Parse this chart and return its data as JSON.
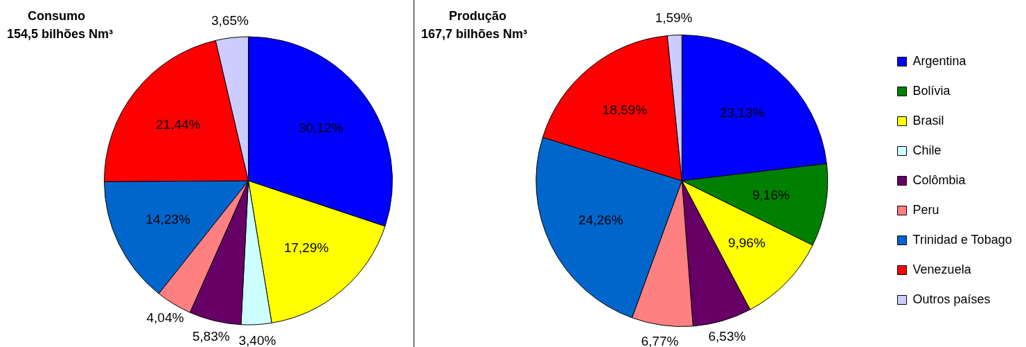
{
  "chart_data": [
    {
      "type": "pie",
      "title": "Consumo",
      "subtitle": "154,5 bilhões Nm³",
      "legend": false,
      "categories": [
        null,
        null,
        null,
        null,
        null,
        null,
        null,
        null
      ],
      "values": [
        30.12,
        17.29,
        3.4,
        5.83,
        4.04,
        14.23,
        21.44,
        3.65
      ],
      "colors": [
        "#0000ff",
        "#ffff00",
        "#ccffff",
        "#660066",
        "#ff8080",
        "#0066cc",
        "#ff0000",
        "#ccccff"
      ],
      "value_labels": [
        "30,12%",
        "17,29%",
        "3,40%",
        "5,83%",
        "4,04%",
        "14,23%",
        "21,44%",
        "3,65%"
      ]
    },
    {
      "type": "pie",
      "title": "Produção",
      "subtitle": "167,7 bilhões Nm³",
      "legend": "right",
      "categories": [
        "Argentina",
        "Bolívia",
        "Brasil",
        "Chile",
        "Colômbia",
        "Peru",
        "Trinidad e Tobago",
        "Venezuela",
        "Outros países"
      ],
      "values": [
        23.13,
        9.16,
        9.96,
        0,
        6.53,
        6.77,
        24.26,
        18.59,
        1.59
      ],
      "colors": [
        "#0000ff",
        "#008000",
        "#ffff00",
        "#ccffff",
        "#660066",
        "#ff8080",
        "#0066cc",
        "#ff0000",
        "#ccccff"
      ],
      "value_labels": [
        "23,13%",
        "9,16%",
        "9,96%",
        null,
        "6,53%",
        "6,77%",
        "24,26%",
        "18,59%",
        "1,59%"
      ]
    }
  ]
}
